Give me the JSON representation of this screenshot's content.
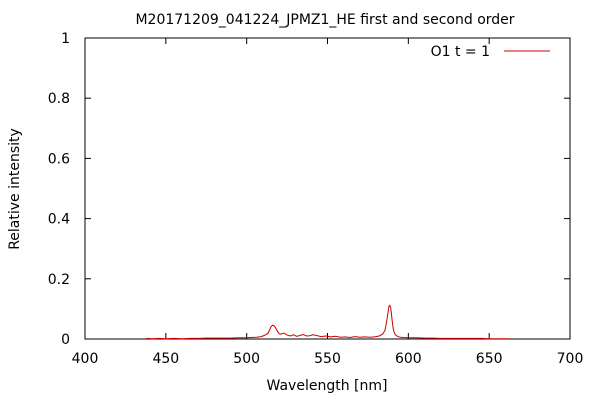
{
  "chart_data": {
    "type": "line",
    "title": "M20171209_041224_JPMZ1_HE first and second order",
    "xlabel": "Wavelength [nm]",
    "ylabel": "Relative intensity",
    "xlim": [
      400,
      700
    ],
    "ylim": [
      0,
      1
    ],
    "xticks": [
      400,
      450,
      500,
      550,
      600,
      650,
      700
    ],
    "xtick_labels": [
      "400",
      "450",
      "500",
      "550",
      "600",
      "650",
      "700"
    ],
    "yticks": [
      0,
      0.2,
      0.4,
      0.6,
      0.8,
      1
    ],
    "ytick_labels": [
      "0",
      "0.2",
      "0.4",
      "0.6",
      "0.8",
      "1"
    ],
    "grid": false,
    "legend_position": "top-right",
    "series": [
      {
        "name": "O1 t = 1",
        "color": "#cc0000",
        "x": [
          438,
          442,
          446,
          450,
          455,
          460,
          465,
          470,
          475,
          480,
          485,
          490,
          495,
          500,
          503,
          506,
          509,
          511,
          513,
          514,
          515,
          516,
          517,
          518,
          519,
          520,
          521,
          523,
          525,
          527,
          529,
          531,
          533,
          535,
          537,
          539,
          541,
          543,
          546,
          549,
          552,
          555,
          558,
          561,
          564,
          567,
          570,
          573,
          576,
          579,
          582,
          584,
          585.5,
          586.5,
          587.5,
          588,
          588.5,
          589,
          589.5,
          590,
          590.5,
          591,
          592,
          593.5,
          595,
          597,
          600,
          605,
          610,
          615,
          620,
          625,
          630,
          635,
          640,
          645,
          650,
          655,
          660,
          662
        ],
        "y": [
          0.002,
          0.001,
          0.002,
          0.001,
          0.002,
          0.001,
          0.002,
          0.002,
          0.003,
          0.003,
          0.003,
          0.003,
          0.004,
          0.004,
          0.005,
          0.006,
          0.008,
          0.012,
          0.018,
          0.028,
          0.04,
          0.046,
          0.044,
          0.036,
          0.026,
          0.018,
          0.016,
          0.02,
          0.013,
          0.01,
          0.014,
          0.009,
          0.012,
          0.015,
          0.01,
          0.011,
          0.014,
          0.012,
          0.008,
          0.01,
          0.007,
          0.009,
          0.006,
          0.007,
          0.005,
          0.008,
          0.006,
          0.007,
          0.006,
          0.007,
          0.01,
          0.016,
          0.028,
          0.055,
          0.09,
          0.108,
          0.112,
          0.105,
          0.085,
          0.06,
          0.04,
          0.025,
          0.014,
          0.008,
          0.006,
          0.005,
          0.004,
          0.004,
          0.003,
          0.003,
          0.002,
          0.002,
          0.002,
          0.002,
          0.002,
          0.002,
          0.001,
          0.001,
          0.001,
          0.001
        ]
      }
    ]
  }
}
